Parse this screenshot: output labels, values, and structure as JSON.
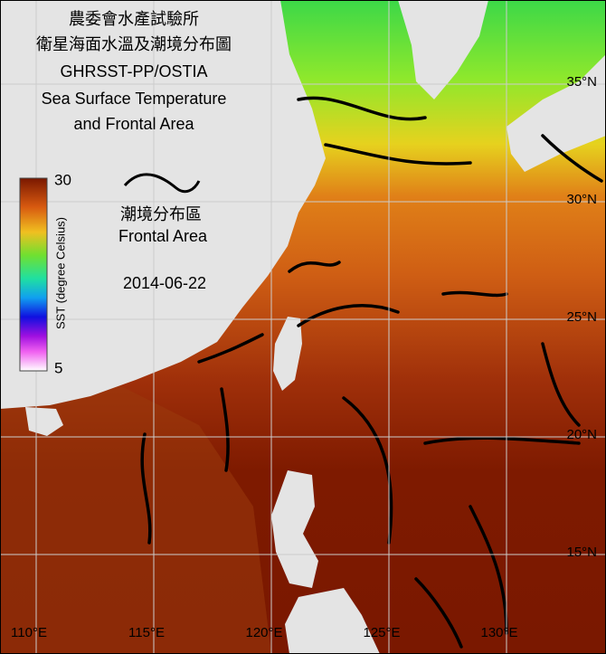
{
  "title": [
    "農委會水產試驗所",
    "衛星海面水溫及潮境分布圖",
    "GHRSST-PP/OSTIA",
    "Sea Surface Temperature",
    "and Frontal Area"
  ],
  "colorbar": {
    "max": 30,
    "min": 5,
    "label": "SST (degree Celsius)"
  },
  "legend": [
    "潮境分布區",
    "Frontal Area"
  ],
  "date": "2014-06-22",
  "latitudes": [
    {
      "value": 35,
      "label": "35°N"
    },
    {
      "value": 30,
      "label": "30°N"
    },
    {
      "value": 25,
      "label": "25°N"
    },
    {
      "value": 20,
      "label": "20°N"
    },
    {
      "value": 15,
      "label": "15°N"
    }
  ],
  "longitudes": [
    {
      "value": 110,
      "label": "110°E"
    },
    {
      "value": 115,
      "label": "115°E"
    },
    {
      "value": 120,
      "label": "120°E"
    },
    {
      "value": 125,
      "label": "125°E"
    },
    {
      "value": 130,
      "label": "130°E"
    }
  ]
}
